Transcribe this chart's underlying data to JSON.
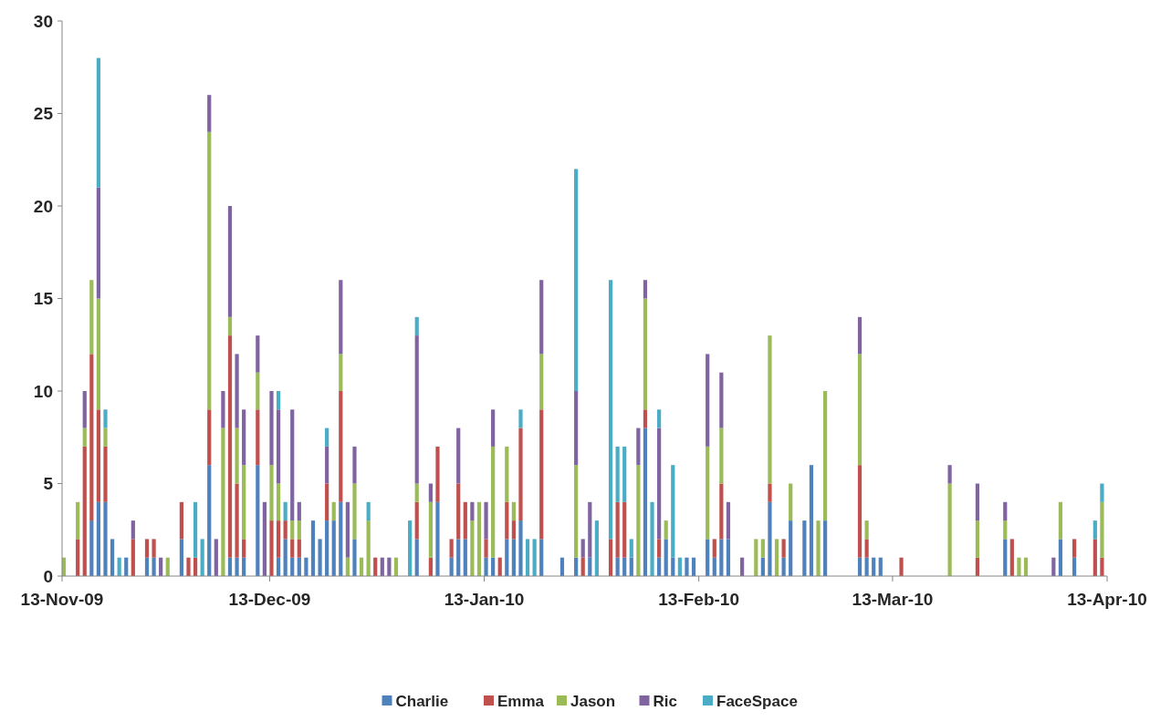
{
  "chart_data": {
    "type": "bar",
    "stacked": true,
    "x": [
      "2009-11-13",
      "2009-11-15",
      "2009-11-16",
      "2009-11-17",
      "2009-11-18",
      "2009-11-19",
      "2009-11-20",
      "2009-11-21",
      "2009-11-22",
      "2009-11-23",
      "2009-11-25",
      "2009-11-26",
      "2009-11-27",
      "2009-11-28",
      "2009-11-30",
      "2009-12-01",
      "2009-12-02",
      "2009-12-03",
      "2009-12-04",
      "2009-12-05",
      "2009-12-06",
      "2009-12-07",
      "2009-12-08",
      "2009-12-09",
      "2009-12-11",
      "2009-12-12",
      "2009-12-13",
      "2009-12-14",
      "2009-12-15",
      "2009-12-16",
      "2009-12-17",
      "2009-12-18",
      "2009-12-19",
      "2009-12-20",
      "2009-12-21",
      "2009-12-22",
      "2009-12-23",
      "2009-12-24",
      "2009-12-25",
      "2009-12-26",
      "2009-12-27",
      "2009-12-28",
      "2009-12-29",
      "2009-12-30",
      "2009-12-31",
      "2010-01-02",
      "2010-01-03",
      "2010-01-05",
      "2010-01-06",
      "2010-01-08",
      "2010-01-09",
      "2010-01-10",
      "2010-01-11",
      "2010-01-12",
      "2010-01-13",
      "2010-01-14",
      "2010-01-15",
      "2010-01-16",
      "2010-01-17",
      "2010-01-18",
      "2010-01-19",
      "2010-01-20",
      "2010-01-21",
      "2010-01-24",
      "2010-01-26",
      "2010-01-27",
      "2010-01-28",
      "2010-01-29",
      "2010-01-31",
      "2010-02-01",
      "2010-02-02",
      "2010-02-03",
      "2010-02-04",
      "2010-02-05",
      "2010-02-06",
      "2010-02-07",
      "2010-02-08",
      "2010-02-09",
      "2010-02-10",
      "2010-02-11",
      "2010-02-12",
      "2010-02-14",
      "2010-02-15",
      "2010-02-16",
      "2010-02-17",
      "2010-02-19",
      "2010-02-21",
      "2010-02-22",
      "2010-02-23",
      "2010-02-24",
      "2010-02-25",
      "2010-02-26",
      "2010-02-28",
      "2010-03-01",
      "2010-03-02",
      "2010-03-03",
      "2010-03-08",
      "2010-03-09",
      "2010-03-10",
      "2010-03-11",
      "2010-03-14",
      "2010-03-21",
      "2010-03-25",
      "2010-03-29",
      "2010-03-30",
      "2010-03-31",
      "2010-04-01",
      "2010-04-05",
      "2010-04-06",
      "2010-04-08",
      "2010-04-11",
      "2010-04-12"
    ],
    "series": [
      {
        "name": "Charlie",
        "color": "#4f81bd",
        "values": [
          0,
          0,
          0,
          3,
          4,
          4,
          2,
          0,
          1,
          0,
          1,
          1,
          0,
          0,
          2,
          0,
          0,
          0,
          6,
          0,
          0,
          1,
          1,
          1,
          6,
          0,
          0,
          1,
          2,
          1,
          1,
          1,
          3,
          2,
          3,
          3,
          4,
          0,
          2,
          0,
          0,
          0,
          0,
          0,
          0,
          0,
          2,
          0,
          4,
          1,
          2,
          2,
          0,
          0,
          1,
          1,
          0,
          2,
          2,
          3,
          0,
          0,
          2,
          1,
          1,
          0,
          1,
          0,
          0,
          1,
          1,
          1,
          0,
          8,
          0,
          1,
          2,
          1,
          0,
          1,
          1,
          2,
          1,
          2,
          2,
          0,
          0,
          1,
          4,
          0,
          1,
          3,
          3,
          6,
          0,
          3,
          1,
          1,
          1,
          1,
          0,
          0,
          0,
          2,
          0,
          0,
          0,
          0,
          2,
          1,
          0,
          0
        ]
      },
      {
        "name": "Emma",
        "color": "#c0504d",
        "values": [
          0,
          2,
          7,
          9,
          5,
          3,
          0,
          0,
          0,
          2,
          1,
          1,
          0,
          0,
          2,
          1,
          1,
          0,
          3,
          0,
          0,
          12,
          4,
          1,
          3,
          0,
          3,
          2,
          1,
          1,
          1,
          0,
          0,
          0,
          2,
          0,
          6,
          0,
          0,
          0,
          0,
          1,
          0,
          0,
          0,
          0,
          2,
          1,
          3,
          1,
          3,
          2,
          0,
          0,
          1,
          0,
          1,
          2,
          1,
          5,
          0,
          0,
          7,
          0,
          0,
          1,
          0,
          0,
          2,
          3,
          3,
          0,
          0,
          1,
          0,
          1,
          0,
          0,
          0,
          0,
          0,
          0,
          1,
          3,
          0,
          0,
          0,
          0,
          1,
          0,
          1,
          0,
          0,
          0,
          0,
          0,
          5,
          1,
          0,
          0,
          1,
          0,
          1,
          0,
          2,
          0,
          0,
          0,
          0,
          1,
          2,
          1
        ]
      },
      {
        "name": "Jason",
        "color": "#9bbb59",
        "values": [
          1,
          2,
          1,
          4,
          6,
          1,
          0,
          0,
          0,
          0,
          0,
          0,
          0,
          1,
          0,
          0,
          0,
          0,
          15,
          0,
          8,
          1,
          3,
          4,
          2,
          0,
          3,
          2,
          0,
          1,
          1,
          0,
          0,
          0,
          0,
          1,
          2,
          1,
          3,
          1,
          3,
          0,
          0,
          0,
          1,
          0,
          1,
          3,
          0,
          0,
          0,
          0,
          3,
          4,
          0,
          6,
          0,
          3,
          1,
          0,
          0,
          0,
          3,
          0,
          5,
          0,
          0,
          0,
          0,
          0,
          0,
          0,
          6,
          6,
          0,
          0,
          1,
          0,
          0,
          0,
          0,
          5,
          0,
          3,
          0,
          0,
          2,
          1,
          8,
          2,
          0,
          2,
          0,
          0,
          3,
          7,
          6,
          1,
          0,
          0,
          0,
          5,
          2,
          1,
          0,
          1,
          1,
          0,
          2,
          0,
          0,
          3
        ]
      },
      {
        "name": "Ric",
        "color": "#8064a2",
        "values": [
          0,
          0,
          2,
          0,
          6,
          0,
          0,
          0,
          0,
          1,
          0,
          0,
          1,
          0,
          0,
          0,
          0,
          0,
          2,
          2,
          2,
          6,
          4,
          3,
          2,
          4,
          4,
          4,
          0,
          6,
          1,
          0,
          0,
          0,
          2,
          0,
          4,
          3,
          2,
          0,
          0,
          0,
          1,
          1,
          0,
          0,
          8,
          1,
          0,
          0,
          3,
          0,
          1,
          0,
          2,
          2,
          0,
          0,
          0,
          0,
          0,
          0,
          4,
          0,
          4,
          1,
          3,
          0,
          0,
          0,
          0,
          0,
          2,
          1,
          0,
          6,
          0,
          0,
          0,
          0,
          0,
          5,
          0,
          3,
          2,
          1,
          0,
          0,
          0,
          0,
          0,
          0,
          0,
          0,
          0,
          0,
          2,
          0,
          0,
          0,
          0,
          1,
          2,
          1,
          0,
          0,
          0,
          1,
          0,
          0,
          0,
          0
        ]
      },
      {
        "name": "FaceSpace",
        "color": "#4bacc6",
        "values": [
          0,
          0,
          0,
          0,
          7,
          1,
          0,
          1,
          0,
          0,
          0,
          0,
          0,
          0,
          0,
          0,
          3,
          2,
          0,
          0,
          0,
          0,
          0,
          0,
          0,
          0,
          0,
          1,
          1,
          0,
          0,
          0,
          0,
          0,
          1,
          0,
          0,
          0,
          0,
          0,
          1,
          0,
          0,
          0,
          0,
          3,
          1,
          0,
          0,
          0,
          0,
          0,
          0,
          0,
          0,
          0,
          0,
          0,
          0,
          1,
          2,
          2,
          0,
          0,
          12,
          0,
          0,
          3,
          14,
          3,
          3,
          1,
          0,
          0,
          4,
          1,
          0,
          5,
          1,
          0,
          0,
          0,
          0,
          0,
          0,
          0,
          0,
          0,
          0,
          0,
          0,
          0,
          0,
          0,
          0,
          0,
          0,
          0,
          0,
          0,
          0,
          0,
          0,
          0,
          0,
          0,
          0,
          0,
          0,
          0,
          1,
          1
        ]
      }
    ],
    "xlim": [
      "2009-11-13",
      "2010-04-13"
    ],
    "xticks": [
      {
        "value": "2009-11-13",
        "label": "13-Nov-09"
      },
      {
        "value": "2009-12-13",
        "label": "13-Dec-09"
      },
      {
        "value": "2010-01-13",
        "label": "13-Jan-10"
      },
      {
        "value": "2010-02-13",
        "label": "13-Feb-10"
      },
      {
        "value": "2010-03-13",
        "label": "13-Mar-10"
      },
      {
        "value": "2010-04-13",
        "label": "13-Apr-10"
      }
    ],
    "ylim": [
      0,
      30
    ],
    "yticks": [
      0,
      5,
      10,
      15,
      20,
      25,
      30
    ],
    "grid": false,
    "legend": "bottom"
  }
}
